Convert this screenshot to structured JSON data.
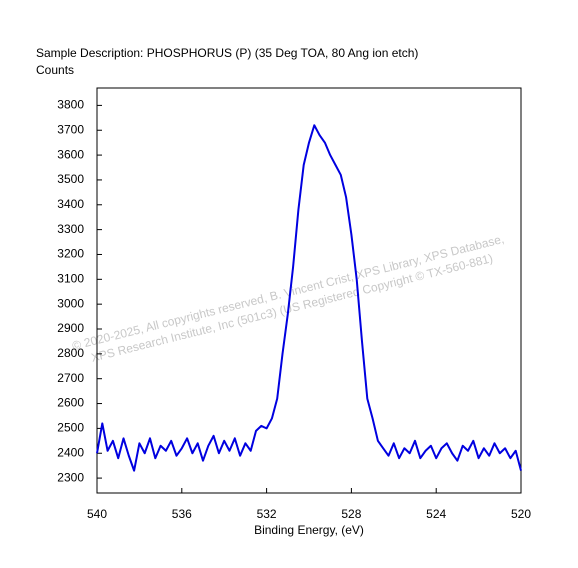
{
  "chart_data": {
    "type": "line",
    "title": "Sample Description:  PHOSPHORUS (P) (35 Deg TOA, 80 Ang ion etch)",
    "y_label": "Counts",
    "x_label": "Binding Energy, (eV)",
    "annotations": [
      "© 2020-2025,  All copyrights reserved,   B. Vincent Crist,   XPS Library, XPS Database,",
      "XPS Research Institute, Inc (501c3)   (US Registered Copyright © TX-560-881)"
    ],
    "color": "#0000e0",
    "xlim": [
      540,
      520
    ],
    "xticks": [
      540,
      536,
      532,
      528,
      524,
      520
    ],
    "ylim": [
      2240,
      3870
    ],
    "yticks": [
      2300,
      2400,
      2500,
      2600,
      2700,
      2800,
      2900,
      3000,
      3100,
      3200,
      3300,
      3400,
      3500,
      3600,
      3700,
      3800
    ],
    "x": [
      540,
      539.75,
      539.5,
      539.25,
      539,
      538.75,
      538.5,
      538.25,
      538,
      537.75,
      537.5,
      537.25,
      537,
      536.75,
      536.5,
      536.25,
      536,
      535.75,
      535.5,
      535.25,
      535,
      534.75,
      534.5,
      534.25,
      534,
      533.75,
      533.5,
      533.25,
      533,
      532.75,
      532.5,
      532.25,
      532,
      531.75,
      531.5,
      531.25,
      531,
      530.75,
      530.5,
      530.25,
      530,
      529.75,
      529.5,
      529.25,
      529,
      528.75,
      528.5,
      528.25,
      528,
      527.75,
      527.5,
      527.25,
      527,
      526.75,
      526.5,
      526.25,
      526,
      525.75,
      525.5,
      525.25,
      525,
      524.75,
      524.5,
      524.25,
      524,
      523.75,
      523.5,
      523.25,
      523,
      522.75,
      522.5,
      522.25,
      522,
      521.75,
      521.5,
      521.25,
      521,
      520.75,
      520.5,
      520.25,
      520
    ],
    "values": [
      2400,
      2520,
      2410,
      2450,
      2380,
      2460,
      2390,
      2330,
      2440,
      2400,
      2460,
      2380,
      2430,
      2410,
      2450,
      2390,
      2420,
      2460,
      2400,
      2440,
      2370,
      2430,
      2470,
      2400,
      2450,
      2410,
      2460,
      2390,
      2440,
      2410,
      2490,
      2510,
      2500,
      2540,
      2620,
      2800,
      2960,
      3150,
      3380,
      3560,
      3650,
      3720,
      3680,
      3650,
      3600,
      3560,
      3520,
      3430,
      3280,
      3100,
      2850,
      2620,
      2540,
      2450,
      2420,
      2390,
      2440,
      2380,
      2420,
      2400,
      2450,
      2380,
      2410,
      2430,
      2380,
      2420,
      2440,
      2400,
      2370,
      2430,
      2410,
      2450,
      2380,
      2420,
      2390,
      2440,
      2400,
      2420,
      2380,
      2410,
      2330
    ]
  }
}
